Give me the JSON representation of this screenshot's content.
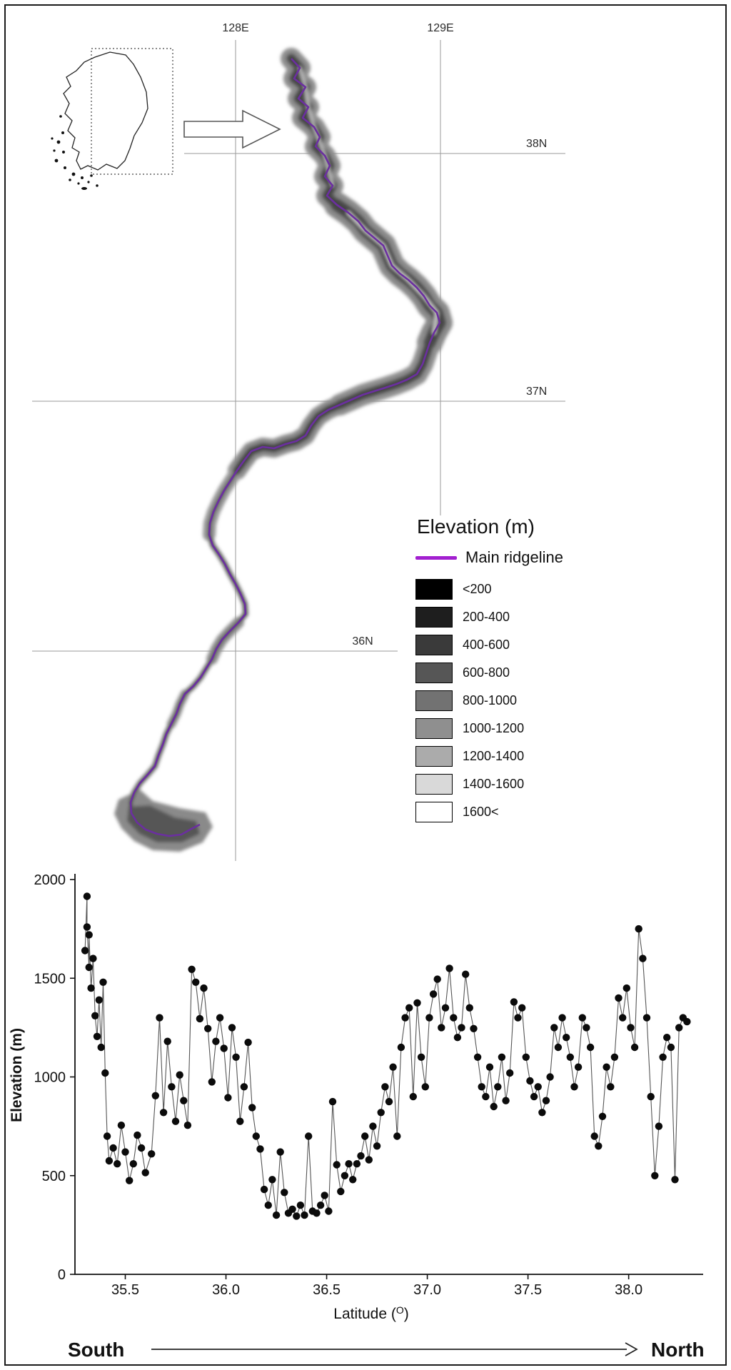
{
  "figure": {
    "background_color": "#ffffff",
    "border_color": "#1a1a1a"
  },
  "map": {
    "grid_labels": {
      "lon_128": "128E",
      "lon_129": "129E",
      "lat_38": "38N",
      "lat_37": "37N",
      "lat_36": "36N"
    },
    "ridgeline_color": "#6b2fa0",
    "legend": {
      "title": "Elevation (m)",
      "ridgeline_label": "Main ridgeline",
      "ridgeline_color": "#a21fd0",
      "classes": [
        {
          "label": "<200",
          "color": "#000000"
        },
        {
          "label": "200-400",
          "color": "#1e1e1e"
        },
        {
          "label": "400-600",
          "color": "#3a3a3a"
        },
        {
          "label": "600-800",
          "color": "#565656"
        },
        {
          "label": "800-1000",
          "color": "#727272"
        },
        {
          "label": "1000-1200",
          "color": "#8f8f8f"
        },
        {
          "label": "1200-1400",
          "color": "#ababab"
        },
        {
          "label": "1400-1600",
          "color": "#d9d9d9"
        },
        {
          "label": "1600<",
          "color": "#ffffff"
        }
      ]
    }
  },
  "chart_data": {
    "type": "scatter",
    "title": "",
    "xlabel_prefix": "Latitude (",
    "xlabel_sup": "O",
    "xlabel_suffix": ")",
    "ylabel": "Elevation (m)",
    "xlim": [
      35.25,
      38.37
    ],
    "ylim": [
      0,
      2000
    ],
    "x_ticks": [
      35.5,
      36.0,
      36.5,
      37.0,
      37.5,
      38.0
    ],
    "y_ticks": [
      0,
      500,
      1000,
      1500,
      2000
    ],
    "grid": false,
    "legend_position": "none",
    "south_label": "South",
    "north_label": "North",
    "points": [
      [
        35.3,
        1640
      ],
      [
        35.31,
        1915
      ],
      [
        35.31,
        1760
      ],
      [
        35.32,
        1555
      ],
      [
        35.32,
        1720
      ],
      [
        35.33,
        1450
      ],
      [
        35.34,
        1600
      ],
      [
        35.35,
        1310
      ],
      [
        35.36,
        1205
      ],
      [
        35.37,
        1390
      ],
      [
        35.38,
        1150
      ],
      [
        35.39,
        1480
      ],
      [
        35.4,
        1020
      ],
      [
        35.41,
        700
      ],
      [
        35.42,
        575
      ],
      [
        35.44,
        640
      ],
      [
        35.46,
        560
      ],
      [
        35.48,
        755
      ],
      [
        35.5,
        620
      ],
      [
        35.52,
        475
      ],
      [
        35.54,
        560
      ],
      [
        35.56,
        705
      ],
      [
        35.58,
        640
      ],
      [
        35.6,
        515
      ],
      [
        35.63,
        610
      ],
      [
        35.65,
        905
      ],
      [
        35.67,
        1300
      ],
      [
        35.69,
        820
      ],
      [
        35.71,
        1180
      ],
      [
        35.73,
        950
      ],
      [
        35.75,
        775
      ],
      [
        35.77,
        1010
      ],
      [
        35.79,
        880
      ],
      [
        35.81,
        755
      ],
      [
        35.83,
        1545
      ],
      [
        35.85,
        1480
      ],
      [
        35.87,
        1295
      ],
      [
        35.89,
        1450
      ],
      [
        35.91,
        1245
      ],
      [
        35.93,
        975
      ],
      [
        35.95,
        1180
      ],
      [
        35.97,
        1300
      ],
      [
        35.99,
        1145
      ],
      [
        36.01,
        895
      ],
      [
        36.03,
        1250
      ],
      [
        36.05,
        1100
      ],
      [
        36.07,
        775
      ],
      [
        36.09,
        950
      ],
      [
        36.11,
        1175
      ],
      [
        36.13,
        845
      ],
      [
        36.15,
        700
      ],
      [
        36.17,
        635
      ],
      [
        36.19,
        430
      ],
      [
        36.21,
        350
      ],
      [
        36.23,
        480
      ],
      [
        36.25,
        300
      ],
      [
        36.27,
        620
      ],
      [
        36.29,
        415
      ],
      [
        36.31,
        310
      ],
      [
        36.33,
        330
      ],
      [
        36.35,
        295
      ],
      [
        36.37,
        350
      ],
      [
        36.39,
        300
      ],
      [
        36.41,
        700
      ],
      [
        36.43,
        320
      ],
      [
        36.45,
        310
      ],
      [
        36.47,
        350
      ],
      [
        36.49,
        400
      ],
      [
        36.51,
        320
      ],
      [
        36.53,
        875
      ],
      [
        36.55,
        555
      ],
      [
        36.57,
        420
      ],
      [
        36.59,
        500
      ],
      [
        36.61,
        560
      ],
      [
        36.63,
        480
      ],
      [
        36.65,
        560
      ],
      [
        36.67,
        600
      ],
      [
        36.69,
        700
      ],
      [
        36.71,
        580
      ],
      [
        36.73,
        750
      ],
      [
        36.75,
        650
      ],
      [
        36.77,
        820
      ],
      [
        36.79,
        950
      ],
      [
        36.81,
        875
      ],
      [
        36.83,
        1050
      ],
      [
        36.85,
        700
      ],
      [
        36.87,
        1150
      ],
      [
        36.89,
        1300
      ],
      [
        36.91,
        1350
      ],
      [
        36.93,
        900
      ],
      [
        36.95,
        1375
      ],
      [
        36.97,
        1100
      ],
      [
        36.99,
        950
      ],
      [
        37.01,
        1300
      ],
      [
        37.03,
        1420
      ],
      [
        37.05,
        1495
      ],
      [
        37.07,
        1250
      ],
      [
        37.09,
        1350
      ],
      [
        37.11,
        1550
      ],
      [
        37.13,
        1300
      ],
      [
        37.15,
        1200
      ],
      [
        37.17,
        1250
      ],
      [
        37.19,
        1520
      ],
      [
        37.21,
        1350
      ],
      [
        37.23,
        1245
      ],
      [
        37.25,
        1100
      ],
      [
        37.27,
        950
      ],
      [
        37.29,
        900
      ],
      [
        37.31,
        1050
      ],
      [
        37.33,
        850
      ],
      [
        37.35,
        950
      ],
      [
        37.37,
        1100
      ],
      [
        37.39,
        880
      ],
      [
        37.41,
        1020
      ],
      [
        37.43,
        1380
      ],
      [
        37.45,
        1300
      ],
      [
        37.47,
        1350
      ],
      [
        37.49,
        1100
      ],
      [
        37.51,
        980
      ],
      [
        37.53,
        900
      ],
      [
        37.55,
        950
      ],
      [
        37.57,
        820
      ],
      [
        37.59,
        880
      ],
      [
        37.61,
        1000
      ],
      [
        37.63,
        1250
      ],
      [
        37.65,
        1150
      ],
      [
        37.67,
        1300
      ],
      [
        37.69,
        1200
      ],
      [
        37.71,
        1100
      ],
      [
        37.73,
        950
      ],
      [
        37.75,
        1050
      ],
      [
        37.77,
        1300
      ],
      [
        37.79,
        1250
      ],
      [
        37.81,
        1150
      ],
      [
        37.83,
        700
      ],
      [
        37.85,
        650
      ],
      [
        37.87,
        800
      ],
      [
        37.89,
        1050
      ],
      [
        37.91,
        950
      ],
      [
        37.93,
        1100
      ],
      [
        37.95,
        1400
      ],
      [
        37.97,
        1300
      ],
      [
        37.99,
        1450
      ],
      [
        38.01,
        1250
      ],
      [
        38.03,
        1150
      ],
      [
        38.05,
        1750
      ],
      [
        38.07,
        1600
      ],
      [
        38.09,
        1300
      ],
      [
        38.11,
        900
      ],
      [
        38.13,
        500
      ],
      [
        38.15,
        750
      ],
      [
        38.17,
        1100
      ],
      [
        38.19,
        1200
      ],
      [
        38.21,
        1150
      ],
      [
        38.23,
        480
      ],
      [
        38.25,
        1250
      ],
      [
        38.27,
        1300
      ],
      [
        38.29,
        1280
      ]
    ]
  }
}
